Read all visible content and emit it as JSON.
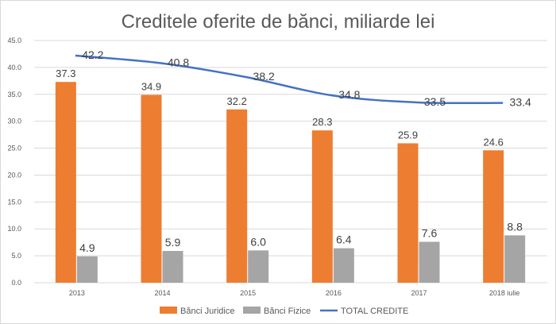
{
  "chart_data": {
    "type": "bar",
    "title": "Creditele oferite de bănci, miliarde lei",
    "categories": [
      "2013",
      "2014",
      "2015",
      "2016",
      "2017",
      "2018 iulie"
    ],
    "series": [
      {
        "name": "Bănci Juridice",
        "kind": "bar",
        "color": "#ED7D31",
        "values": [
          37.3,
          34.9,
          32.2,
          28.3,
          25.9,
          24.6
        ],
        "labels": [
          "37.3",
          "34.9",
          "32.2",
          "28.3",
          "25.9",
          "24.6"
        ]
      },
      {
        "name": "Bănci Fizice",
        "kind": "bar",
        "color": "#A5A5A5",
        "values": [
          4.9,
          5.9,
          6.0,
          6.4,
          7.6,
          8.8
        ],
        "labels": [
          "4.9",
          "5.9",
          "6.0",
          "6.4",
          "7.6",
          "8.8"
        ]
      },
      {
        "name": "TOTAL CREDITE",
        "kind": "line",
        "color": "#4472C4",
        "values": [
          42.2,
          40.8,
          38.2,
          34.8,
          33.5,
          33.4
        ],
        "labels": [
          "42.2",
          "40.8",
          "38.2",
          "34.8",
          "33.5",
          "33.4"
        ]
      }
    ],
    "ylim": [
      0,
      45
    ],
    "yticks": [
      "0.0",
      "5.0",
      "10.0",
      "15.0",
      "20.0",
      "25.0",
      "30.0",
      "35.0",
      "40.0",
      "45.0"
    ],
    "grid": true,
    "legend_position": "bottom"
  }
}
